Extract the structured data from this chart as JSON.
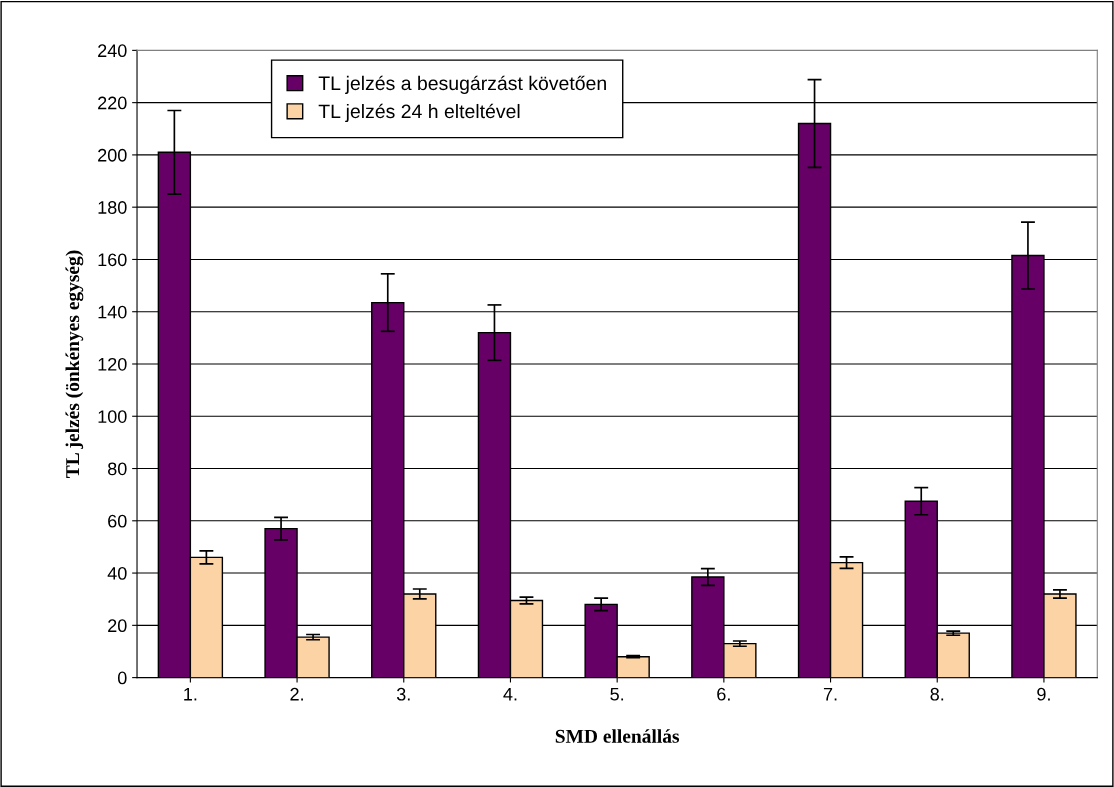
{
  "chart_data": {
    "type": "bar",
    "xlabel": "SMD ellenállás",
    "ylabel": "TL jelzés (önkényes egység)",
    "categories": [
      "1.",
      "2.",
      "3.",
      "4.",
      "5.",
      "6.",
      "7.",
      "8.",
      "9."
    ],
    "series": [
      {
        "name": "TL jelzés a besugárzást követően",
        "color": "#660066",
        "values": [
          201,
          57,
          143.5,
          132,
          28,
          38.5,
          212,
          67.5,
          161.5
        ],
        "errors": [
          16,
          4.3,
          11,
          10.6,
          2.4,
          3.2,
          16.8,
          5.2,
          12.8
        ]
      },
      {
        "name": "TL jelzés 24 h elteltével",
        "color": "#fcd3a5",
        "values": [
          46,
          15.5,
          32,
          29.5,
          8,
          13,
          44,
          17,
          32
        ],
        "errors": [
          2.5,
          1,
          1.9,
          1.3,
          0.4,
          1,
          2.2,
          0.8,
          1.6
        ]
      }
    ],
    "ylim": [
      0,
      240
    ],
    "yticks": [
      0,
      20,
      40,
      60,
      80,
      100,
      120,
      140,
      160,
      180,
      200,
      220,
      240
    ],
    "grid": "y",
    "legend": "top left"
  }
}
